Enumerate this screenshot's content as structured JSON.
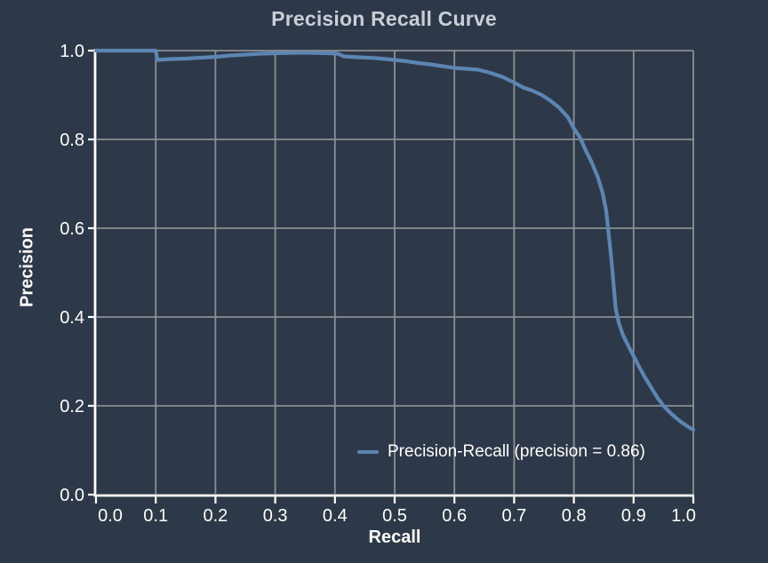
{
  "title": "Precision Recall Curve",
  "axes": {
    "xlabel": "Recall",
    "ylabel": "Precision",
    "x_tick_values": [
      0.0,
      0.1,
      0.2,
      0.3,
      0.4,
      0.5,
      0.6,
      0.7,
      0.8,
      0.9,
      1.0
    ],
    "x_tick_labels": [
      "0.0",
      "0.1",
      "0.2",
      "0.3",
      "0.4",
      "0.5",
      "0.6",
      "0.7",
      "0.8",
      "0.9",
      "1.0"
    ],
    "y_tick_values": [
      0.0,
      0.2,
      0.4,
      0.6,
      0.8,
      1.0
    ],
    "y_tick_labels": [
      "0.0",
      "0.2",
      "0.4",
      "0.6",
      "0.8",
      "1.0"
    ],
    "xlim": [
      0,
      1
    ],
    "ylim": [
      0,
      1
    ],
    "grid": true
  },
  "legend": {
    "label": "Precision-Recall (precision = 0.86)",
    "position": "lower-center",
    "frame": false
  },
  "colors": {
    "background": "#2d3948",
    "grid": "#8b8f94",
    "axis": "#ffffff",
    "tick_text": "#ffffff",
    "title": "#c9ced7",
    "curve": "#5d85b2"
  },
  "chart_data": {
    "type": "line",
    "title": "Precision Recall Curve",
    "xlabel": "Recall",
    "ylabel": "Precision",
    "xlim": [
      0,
      1
    ],
    "ylim": [
      0,
      1
    ],
    "grid": true,
    "legend_position": "lower center",
    "series": [
      {
        "name": "Precision-Recall (precision = 0.86)",
        "average_precision": 0.86,
        "points": [
          [
            0.0,
            1.0
          ],
          [
            0.03,
            1.0
          ],
          [
            0.06,
            1.0
          ],
          [
            0.1,
            1.0
          ],
          [
            0.103,
            0.979
          ],
          [
            0.125,
            0.981
          ],
          [
            0.15,
            0.982
          ],
          [
            0.175,
            0.984
          ],
          [
            0.2,
            0.986
          ],
          [
            0.225,
            0.989
          ],
          [
            0.25,
            0.991
          ],
          [
            0.275,
            0.993
          ],
          [
            0.3,
            0.994
          ],
          [
            0.33,
            0.995
          ],
          [
            0.36,
            0.995
          ],
          [
            0.39,
            0.994
          ],
          [
            0.405,
            0.993
          ],
          [
            0.415,
            0.987
          ],
          [
            0.44,
            0.985
          ],
          [
            0.47,
            0.983
          ],
          [
            0.5,
            0.979
          ],
          [
            0.52,
            0.976
          ],
          [
            0.54,
            0.972
          ],
          [
            0.56,
            0.969
          ],
          [
            0.58,
            0.965
          ],
          [
            0.6,
            0.961
          ],
          [
            0.62,
            0.959
          ],
          [
            0.64,
            0.957
          ],
          [
            0.66,
            0.95
          ],
          [
            0.68,
            0.941
          ],
          [
            0.7,
            0.928
          ],
          [
            0.715,
            0.917
          ],
          [
            0.73,
            0.91
          ],
          [
            0.745,
            0.901
          ],
          [
            0.76,
            0.888
          ],
          [
            0.775,
            0.872
          ],
          [
            0.79,
            0.85
          ],
          [
            0.8,
            0.825
          ],
          [
            0.81,
            0.805
          ],
          [
            0.82,
            0.775
          ],
          [
            0.83,
            0.748
          ],
          [
            0.84,
            0.715
          ],
          [
            0.848,
            0.68
          ],
          [
            0.854,
            0.64
          ],
          [
            0.858,
            0.59
          ],
          [
            0.862,
            0.54
          ],
          [
            0.866,
            0.48
          ],
          [
            0.87,
            0.42
          ],
          [
            0.875,
            0.388
          ],
          [
            0.882,
            0.36
          ],
          [
            0.89,
            0.338
          ],
          [
            0.9,
            0.312
          ],
          [
            0.91,
            0.286
          ],
          [
            0.92,
            0.262
          ],
          [
            0.93,
            0.24
          ],
          [
            0.94,
            0.218
          ],
          [
            0.95,
            0.2
          ],
          [
            0.96,
            0.186
          ],
          [
            0.97,
            0.174
          ],
          [
            0.98,
            0.163
          ],
          [
            0.99,
            0.154
          ],
          [
            1.0,
            0.146
          ]
        ]
      }
    ]
  }
}
